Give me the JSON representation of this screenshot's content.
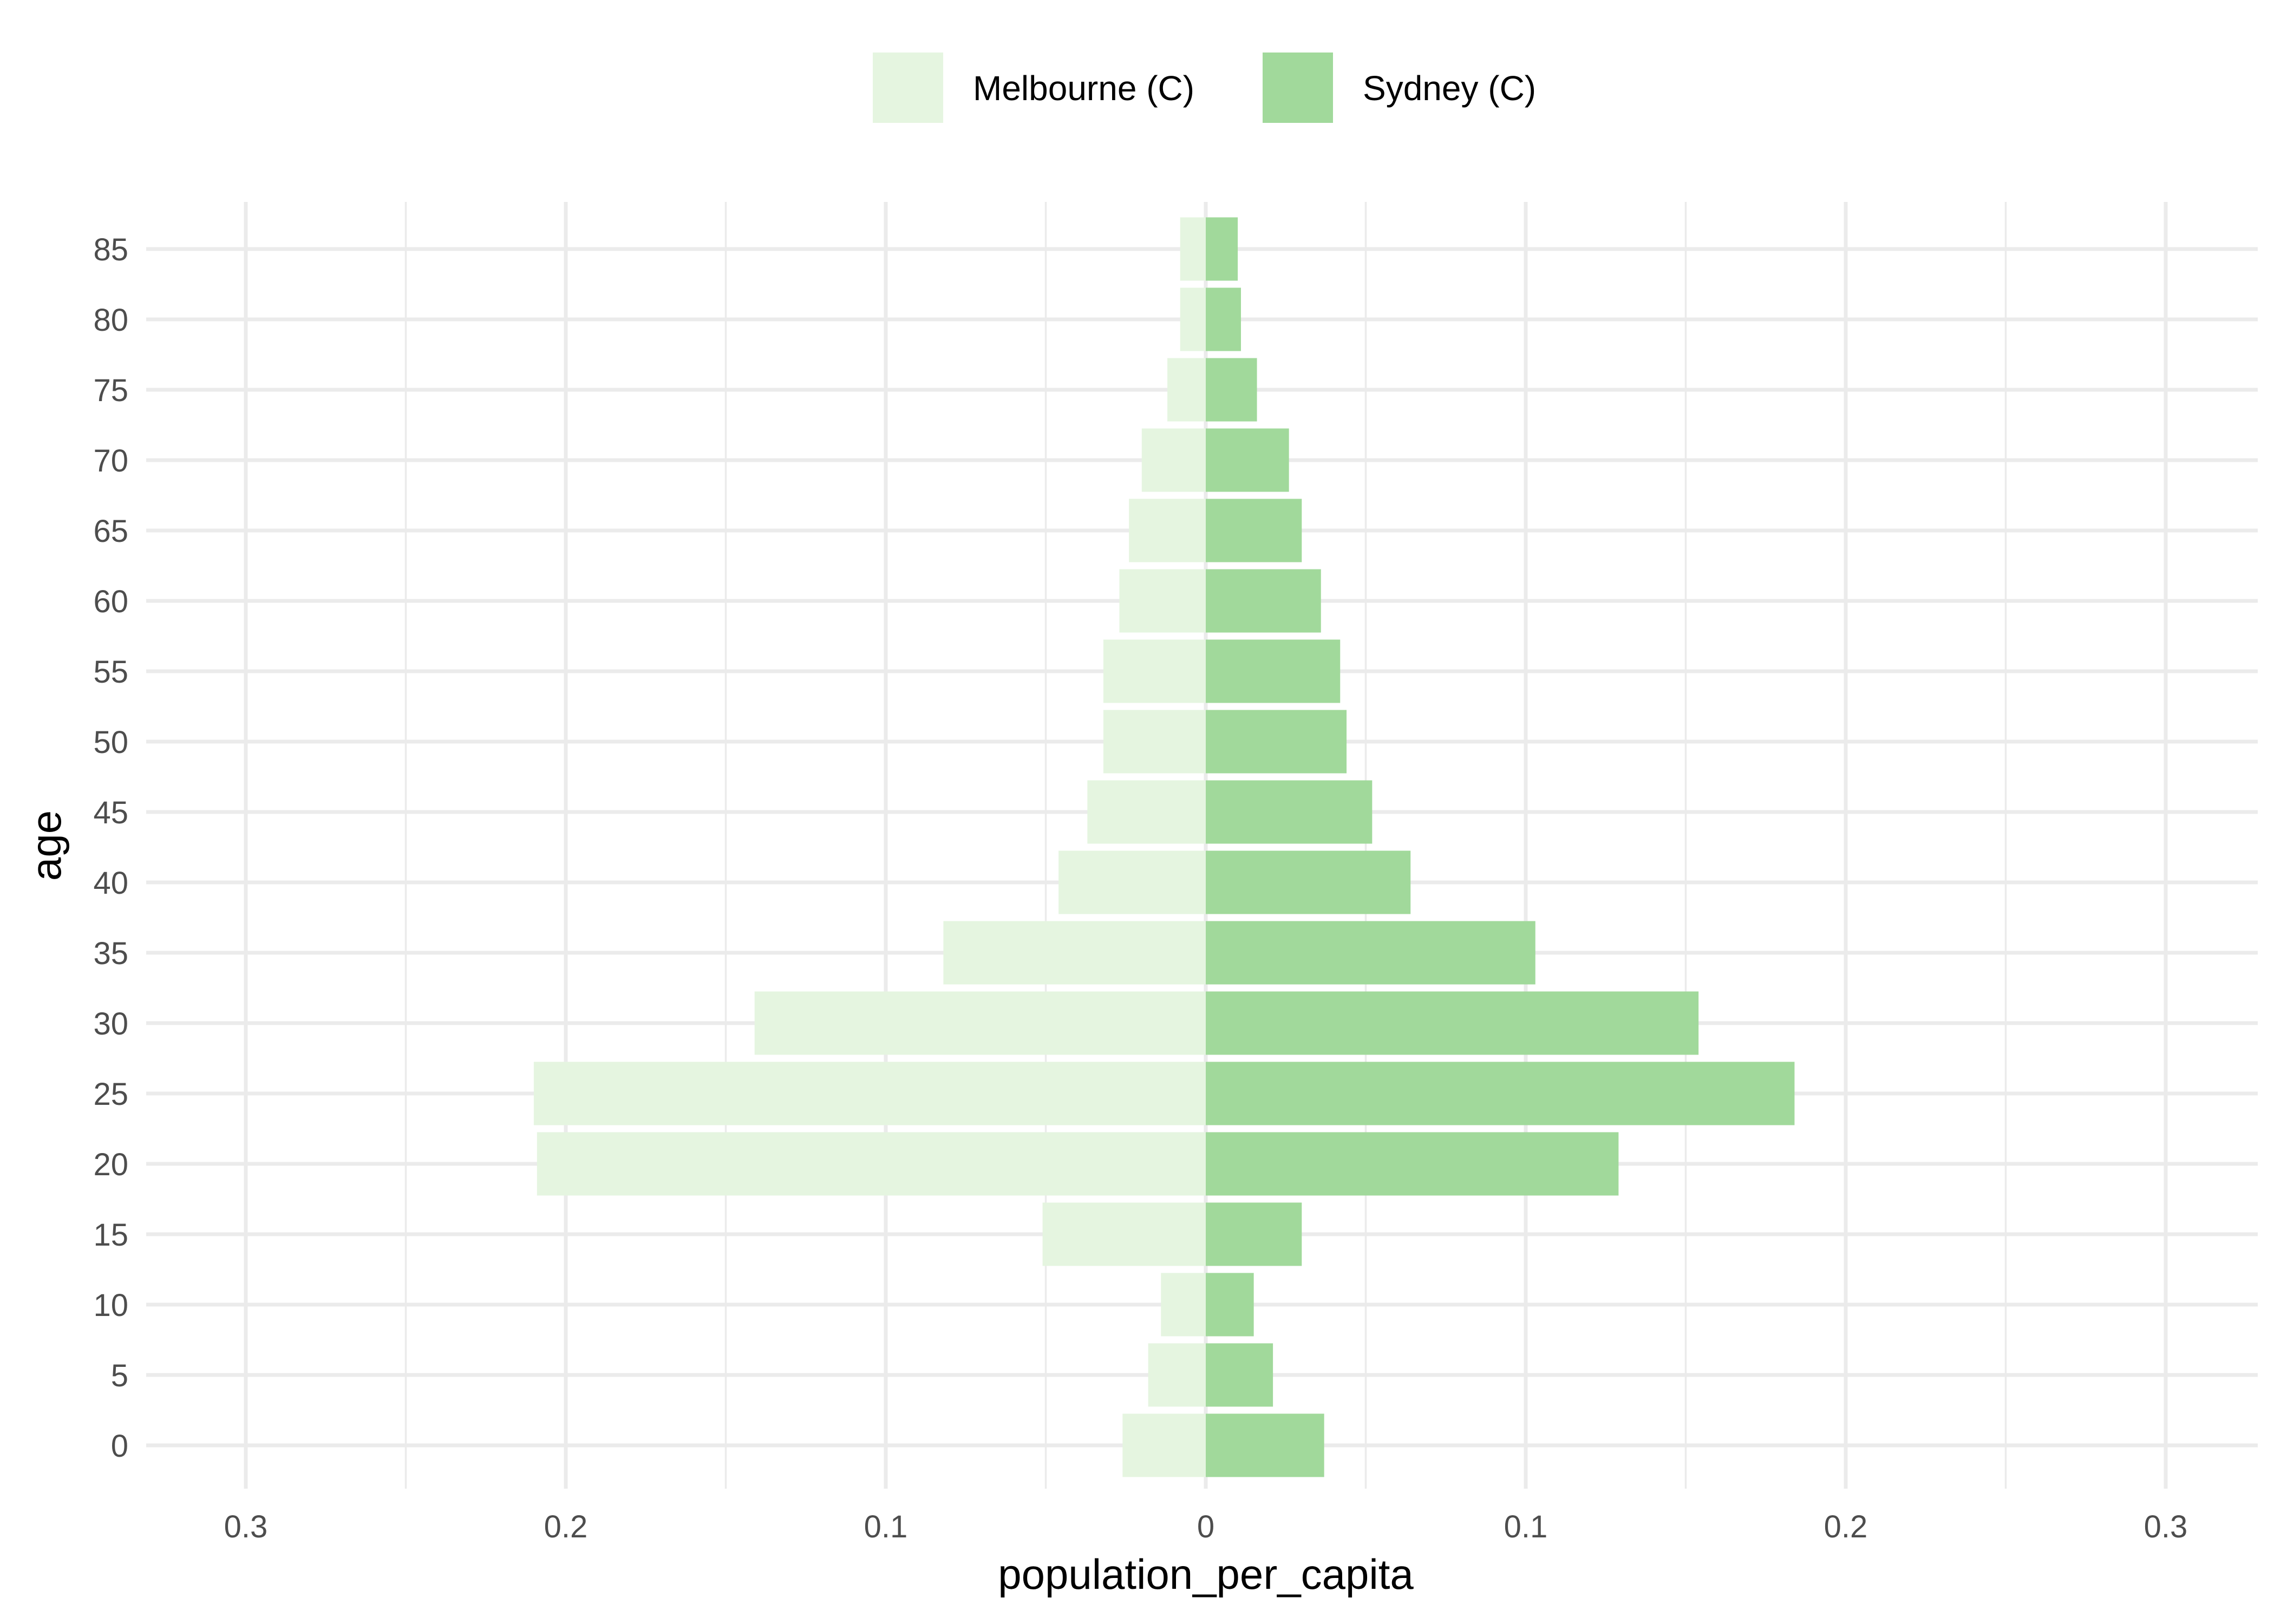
{
  "chart_data": {
    "type": "bar",
    "orientation": "horizontal",
    "layout": "population-pyramid",
    "xlabel": "population_per_capita",
    "ylabel": "age",
    "xlim": [
      -0.3,
      0.3
    ],
    "x_ticks": [
      -0.3,
      -0.2,
      -0.1,
      0,
      0.1,
      0.2,
      0.3
    ],
    "x_tick_labels": [
      "0.3",
      "0.2",
      "0.1",
      "0",
      "0.1",
      "0.2",
      "0.3"
    ],
    "categories": [
      "0",
      "5",
      "10",
      "15",
      "20",
      "25",
      "30",
      "35",
      "40",
      "45",
      "50",
      "55",
      "60",
      "65",
      "70",
      "75",
      "80",
      "85"
    ],
    "legend_position": "top",
    "grid": true,
    "series": [
      {
        "name": "Melbourne (C)",
        "side": "left",
        "color": "#e5f5e0",
        "values": [
          0.026,
          0.018,
          0.014,
          0.051,
          0.209,
          0.21,
          0.141,
          0.082,
          0.046,
          0.037,
          0.032,
          0.032,
          0.027,
          0.024,
          0.02,
          0.012,
          0.008,
          0.008
        ]
      },
      {
        "name": "Sydney (C)",
        "side": "right",
        "color": "#a1d99b",
        "values": [
          0.037,
          0.021,
          0.015,
          0.03,
          0.129,
          0.184,
          0.154,
          0.103,
          0.064,
          0.052,
          0.044,
          0.042,
          0.036,
          0.03,
          0.026,
          0.016,
          0.011,
          0.01
        ]
      }
    ]
  }
}
